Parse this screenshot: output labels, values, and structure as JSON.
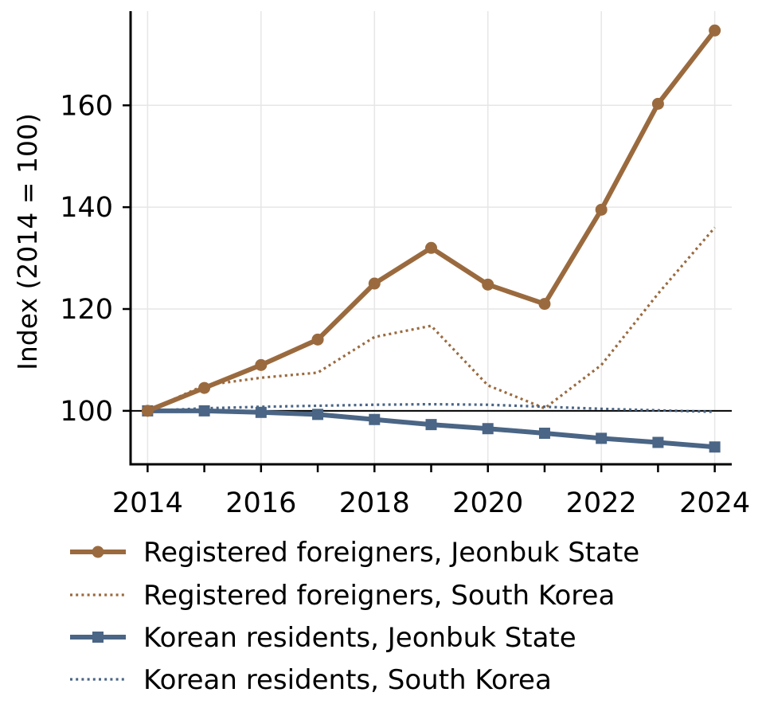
{
  "chart_data": {
    "type": "line",
    "title": "",
    "xlabel": "",
    "ylabel": "Index (2014 = 100)",
    "x": [
      2014,
      2015,
      2016,
      2017,
      2018,
      2019,
      2020,
      2021,
      2022,
      2023,
      2024
    ],
    "xlim": [
      2013.7,
      2024.3
    ],
    "ylim": [
      89.5,
      178.5
    ],
    "x_ticks": [
      2014,
      2016,
      2018,
      2020,
      2022,
      2024
    ],
    "y_ticks": [
      100,
      120,
      140,
      160
    ],
    "grid": true,
    "reference_line": 100,
    "legend_position": "below",
    "series": [
      {
        "name": "Registered foreigners, Jeonbuk State",
        "values": [
          100,
          104.5,
          109,
          114,
          125,
          132,
          124.8,
          121,
          139.5,
          160.3,
          174.7
        ],
        "color": "#9a6a3e",
        "style": "solid",
        "marker": "circle"
      },
      {
        "name": "Registered foreigners, South Korea",
        "values": [
          100,
          105,
          106.5,
          107.5,
          114.5,
          116.7,
          105,
          100.5,
          109,
          123,
          136
        ],
        "color": "#9a6a3e",
        "style": "dotted",
        "marker": "none"
      },
      {
        "name": "Korean residents, Jeonbuk State",
        "values": [
          100,
          100,
          99.7,
          99.3,
          98.3,
          97.3,
          96.5,
          95.6,
          94.6,
          93.8,
          92.9
        ],
        "color": "#4a6585",
        "style": "solid",
        "marker": "square"
      },
      {
        "name": "Korean residents, South Korea",
        "values": [
          100,
          100.5,
          100.8,
          101,
          101.2,
          101.3,
          101.2,
          100.8,
          100.4,
          100.1,
          99.8
        ],
        "color": "#4a6585",
        "style": "dotted",
        "marker": "none"
      }
    ]
  }
}
